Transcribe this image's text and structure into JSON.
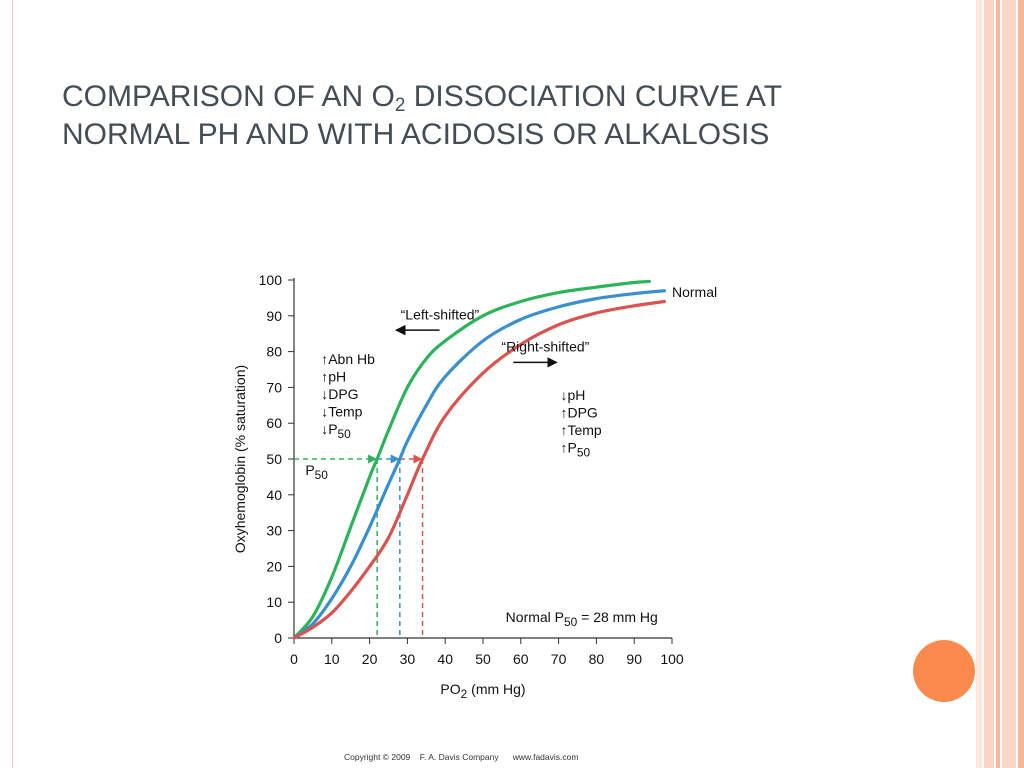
{
  "slide": {
    "title_line1_pre": "COMPARISON OF AN O",
    "title_sub": "2",
    "title_line1_post": " DISSOCIATION CURVE AT",
    "title_line2": "NORMAL PH AND WITH ACIDOSIS OR ALKALOSIS",
    "copyright": "Copyright © 2009    F. A. Davis Company      www.fadavis.com",
    "colors": {
      "title": "#444d56",
      "accent_dot": "#fb8a4e",
      "stripe_light": "#fbd7c8",
      "stripe_mid": "#f6b49a"
    }
  },
  "chart_data": {
    "type": "line",
    "xlabel_main": "PO",
    "xlabel_sub": "2",
    "xlabel_post": " (mm Hg)",
    "ylabel": "Oxyhemoglobin (% saturation)",
    "xlim": [
      0,
      100
    ],
    "ylim": [
      0,
      100
    ],
    "xticks": [
      0,
      10,
      20,
      30,
      40,
      50,
      60,
      70,
      80,
      90,
      100
    ],
    "yticks": [
      0,
      10,
      20,
      30,
      40,
      50,
      60,
      70,
      80,
      90,
      100
    ],
    "grid": false,
    "series": [
      {
        "key": "left",
        "color": "#2db35a",
        "p50": 22,
        "x": [
          0,
          5,
          10,
          15,
          20,
          22,
          25,
          30,
          35,
          40,
          50,
          60,
          70,
          80,
          90,
          94
        ],
        "y": [
          0,
          6,
          17,
          31,
          45,
          50,
          58,
          70,
          78,
          83,
          90,
          94,
          96.5,
          98,
          99.3,
          99.6
        ]
      },
      {
        "key": "normal",
        "name": "Normal",
        "color": "#3a8fcf",
        "p50": 28,
        "x": [
          0,
          5,
          10,
          15,
          20,
          25,
          28,
          30,
          35,
          40,
          50,
          60,
          70,
          80,
          90,
          98
        ],
        "y": [
          0,
          4,
          11,
          20,
          31,
          43,
          50,
          55,
          65,
          73,
          83,
          89,
          92.5,
          94.8,
          96.2,
          97
        ]
      },
      {
        "key": "right",
        "color": "#d9534f",
        "p50": 34,
        "x": [
          0,
          5,
          10,
          15,
          20,
          25,
          30,
          34,
          40,
          50,
          60,
          70,
          80,
          90,
          98
        ],
        "y": [
          0,
          3,
          7,
          13,
          20,
          28,
          40,
          50,
          62,
          74,
          82,
          87.5,
          90.8,
          92.8,
          94
        ]
      }
    ],
    "p50_level": 50,
    "annotations": {
      "left_shifted": "“Left-shifted”",
      "right_shifted": "“Right-shifted”",
      "normal_label": "Normal",
      "left_factors": [
        "↑Abn Hb",
        "↑pH",
        "↓DPG",
        "↓Temp",
        "↓P"
      ],
      "left_p50_sub": "50",
      "right_factors": [
        "↓pH",
        "↑DPG",
        "↑Temp",
        "↑P"
      ],
      "right_p50_sub": "50",
      "p50_label": "P",
      "p50_label_sub": "50",
      "normal_p50_pre": "Normal P",
      "normal_p50_sub": "50",
      "normal_p50_post": " = 28 mm Hg"
    }
  }
}
